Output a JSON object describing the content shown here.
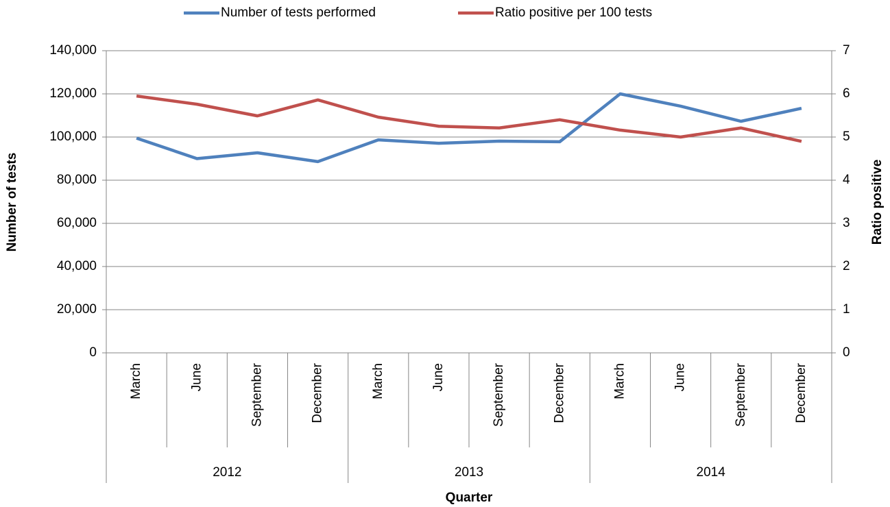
{
  "chart_data": {
    "type": "line",
    "categories": [
      "March",
      "June",
      "September",
      "December",
      "March",
      "June",
      "September",
      "December",
      "March",
      "June",
      "September",
      "December"
    ],
    "x_groups": [
      "2012",
      "2013",
      "2014"
    ],
    "x_label": "Quarter",
    "y_label": "Number of tests",
    "y2_label": "Ratio positive",
    "ylim": [
      0,
      140000
    ],
    "yticks": [
      0,
      {
        "value": 20000,
        "label": "20,000"
      },
      {
        "value": 40000,
        "label": "40,000"
      },
      {
        "value": 60000,
        "label": "60,000"
      },
      {
        "value": 80000,
        "label": "80,000"
      },
      {
        "value": 100000,
        "label": "100,000"
      },
      {
        "value": 120000,
        "label": "120,000"
      },
      {
        "value": 140000,
        "label": "140,000"
      }
    ],
    "y2lim": [
      0,
      7
    ],
    "y2ticks": [
      0,
      1,
      2,
      3,
      4,
      5,
      6,
      7
    ],
    "grid": true,
    "legend": "top",
    "series": [
      {
        "name": "Number of tests performed",
        "color": "#4f81bd",
        "values": [
          99500,
          90000,
          92700,
          88600,
          98700,
          97100,
          98100,
          97800,
          120000,
          114300,
          107300,
          113300
        ]
      },
      {
        "name": "Ratio positive per 100 tests",
        "color": "#c0504d",
        "axis": "y2",
        "values": [
          5.95,
          5.76,
          5.49,
          5.86,
          5.46,
          5.25,
          5.21,
          5.4,
          5.16,
          5.0,
          5.21,
          4.9
        ]
      }
    ]
  }
}
